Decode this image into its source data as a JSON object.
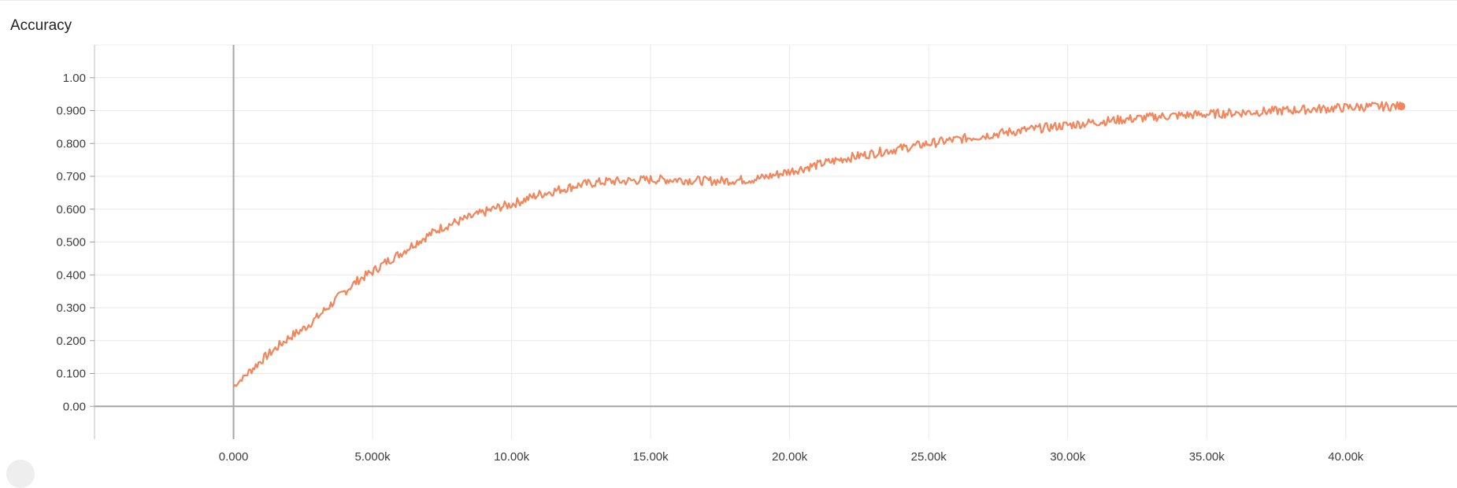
{
  "chart_data": {
    "type": "line",
    "title": "Accuracy",
    "xlabel": "",
    "ylabel": "",
    "xlim": [
      -5000,
      44000
    ],
    "ylim": [
      -0.1,
      1.1
    ],
    "x_ticks": [
      0,
      5000,
      10000,
      15000,
      20000,
      25000,
      30000,
      35000,
      40000
    ],
    "x_tick_labels": [
      "0.000",
      "5.000k",
      "10.00k",
      "15.00k",
      "20.00k",
      "25.00k",
      "30.00k",
      "35.00k",
      "40.00k"
    ],
    "y_ticks": [
      0,
      0.1,
      0.2,
      0.3,
      0.4,
      0.5,
      0.6,
      0.7,
      0.8,
      0.9,
      1.0
    ],
    "y_tick_labels": [
      "0.00",
      "0.100",
      "0.200",
      "0.300",
      "0.400",
      "0.500",
      "0.600",
      "0.700",
      "0.800",
      "0.900",
      "1.00"
    ],
    "grid": true,
    "legend": "none",
    "series": [
      {
        "color": "#f4845a",
        "x": [
          0,
          500,
          1000,
          1500,
          2000,
          2500,
          3000,
          3500,
          4000,
          4500,
          5000,
          5500,
          6000,
          6500,
          7000,
          7500,
          8000,
          8500,
          9000,
          9500,
          10000,
          10500,
          11000,
          11500,
          12000,
          12500,
          13000,
          13500,
          14000,
          14500,
          15000,
          15500,
          16000,
          16500,
          17000,
          17500,
          18000,
          18500,
          19000,
          19500,
          20000,
          20500,
          21000,
          21500,
          22000,
          22500,
          23000,
          23500,
          24000,
          24500,
          25000,
          25500,
          26000,
          26500,
          27000,
          27500,
          28000,
          28500,
          29000,
          29500,
          30000,
          30500,
          31000,
          31500,
          32000,
          32500,
          33000,
          33500,
          34000,
          34500,
          35000,
          35500,
          36000,
          36500,
          37000,
          37500,
          38000,
          38500,
          39000,
          39500,
          40000,
          40500,
          41000,
          41500,
          42000
        ],
        "y": [
          0.06,
          0.1,
          0.14,
          0.175,
          0.21,
          0.235,
          0.27,
          0.31,
          0.35,
          0.385,
          0.41,
          0.44,
          0.465,
          0.495,
          0.52,
          0.545,
          0.56,
          0.575,
          0.59,
          0.605,
          0.615,
          0.63,
          0.645,
          0.655,
          0.665,
          0.675,
          0.68,
          0.685,
          0.685,
          0.688,
          0.69,
          0.69,
          0.69,
          0.688,
          0.686,
          0.686,
          0.688,
          0.69,
          0.695,
          0.705,
          0.715,
          0.725,
          0.735,
          0.745,
          0.755,
          0.762,
          0.77,
          0.778,
          0.785,
          0.792,
          0.8,
          0.806,
          0.812,
          0.818,
          0.824,
          0.83,
          0.836,
          0.841,
          0.846,
          0.851,
          0.856,
          0.86,
          0.865,
          0.869,
          0.873,
          0.876,
          0.88,
          0.883,
          0.885,
          0.887,
          0.889,
          0.891,
          0.893,
          0.895,
          0.897,
          0.899,
          0.901,
          0.903,
          0.905,
          0.907,
          0.909,
          0.911,
          0.912,
          0.913,
          0.913
        ]
      }
    ]
  }
}
